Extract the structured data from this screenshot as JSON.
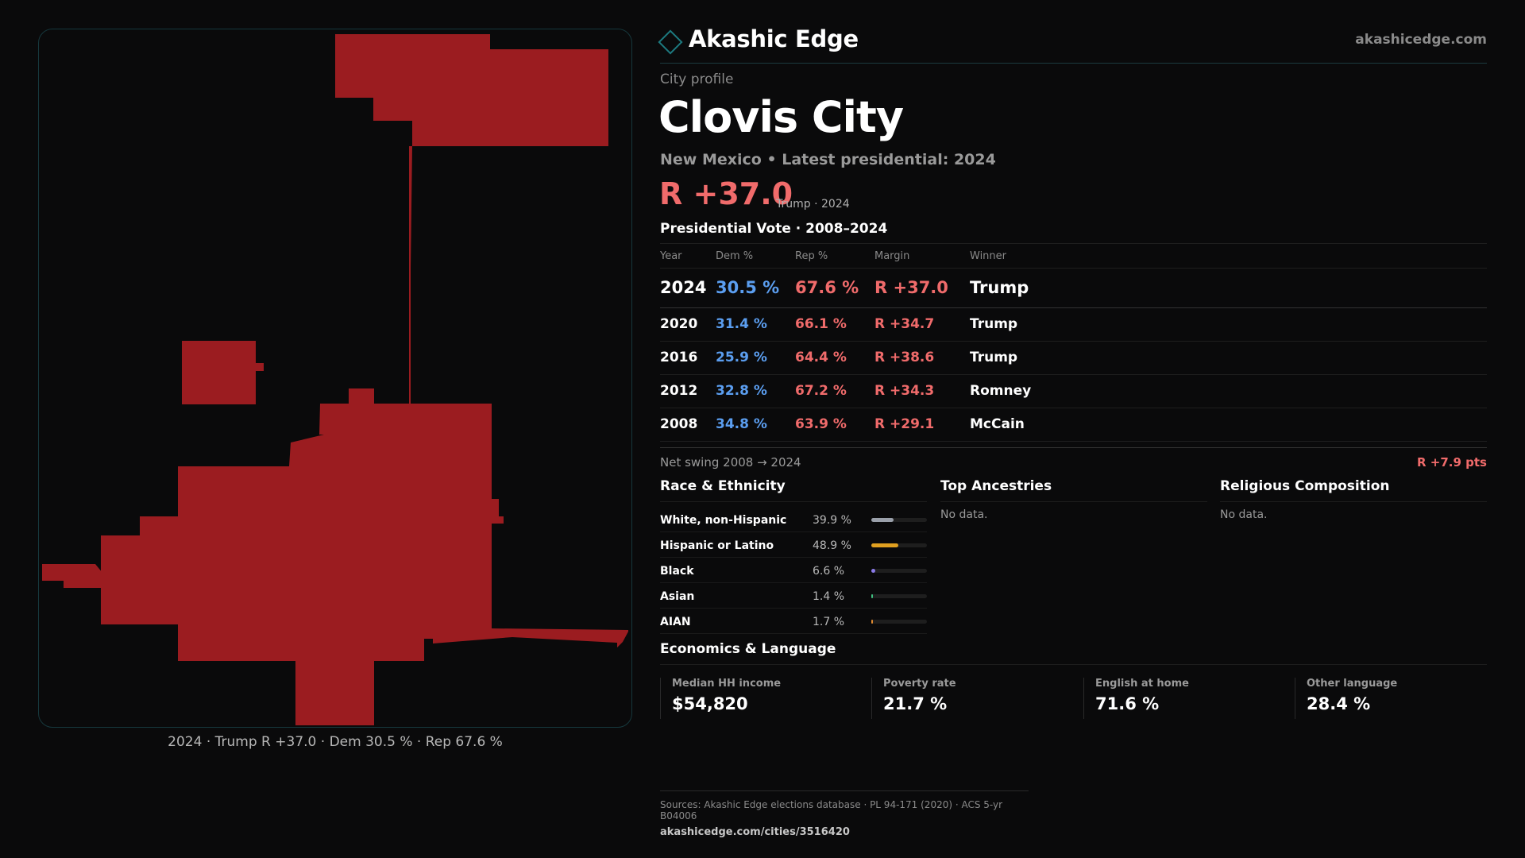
{
  "brand": {
    "name": "Akashic Edge",
    "url": "akashicedge.com"
  },
  "profile": {
    "eyebrow": "City profile",
    "city": "Clovis City",
    "subtitle": "New Mexico • Latest presidential: 2024",
    "margin": "R +37.0",
    "margin_note": "Trump · 2024"
  },
  "map": {
    "caption": "2024 · Trump R +37.0 · Dem 30.5 % · Rep 67.6 %",
    "fill_color": "#9b1c20"
  },
  "vote_table": {
    "title": "Presidential Vote · 2008–2024",
    "headers": {
      "year": "Year",
      "dem": "Dem %",
      "rep": "Rep %",
      "margin": "Margin",
      "winner": "Winner"
    },
    "rows": [
      {
        "year": "2024",
        "dem": "30.5 %",
        "rep": "67.6 %",
        "margin": "R +37.0",
        "winner": "Trump"
      },
      {
        "year": "2020",
        "dem": "31.4 %",
        "rep": "66.1 %",
        "margin": "R +34.7",
        "winner": "Trump"
      },
      {
        "year": "2016",
        "dem": "25.9 %",
        "rep": "64.4 %",
        "margin": "R +38.6",
        "winner": "Trump"
      },
      {
        "year": "2012",
        "dem": "32.8 %",
        "rep": "67.2 %",
        "margin": "R +34.3",
        "winner": "Romney"
      },
      {
        "year": "2008",
        "dem": "34.8 %",
        "rep": "63.9 %",
        "margin": "R +29.1",
        "winner": "McCain"
      }
    ]
  },
  "swing": {
    "label": "Net swing 2008 → 2024",
    "value": "R +7.9 pts"
  },
  "race": {
    "title": "Race & Ethnicity",
    "rows": [
      {
        "label": "White, non-Hispanic",
        "pct": "39.9 %",
        "fraction": 0.399,
        "color": "#9aa0aa"
      },
      {
        "label": "Hispanic or Latino",
        "pct": "48.9 %",
        "fraction": 0.489,
        "color": "#e0a020"
      },
      {
        "label": "Black",
        "pct": "6.6 %",
        "fraction": 0.066,
        "color": "#8a7ae8"
      },
      {
        "label": "Asian",
        "pct": "1.4 %",
        "fraction": 0.014,
        "color": "#3fbf7f"
      },
      {
        "label": "AIAN",
        "pct": "1.7 %",
        "fraction": 0.017,
        "color": "#e08a30"
      }
    ]
  },
  "ancestries": {
    "title": "Top Ancestries",
    "empty": "No data."
  },
  "religion": {
    "title": "Religious Composition",
    "empty": "No data."
  },
  "economics": {
    "title": "Economics & Language",
    "cells": [
      {
        "label": "Median HH income",
        "value": "$54,820"
      },
      {
        "label": "Poverty rate",
        "value": "21.7 %"
      },
      {
        "label": "English at home",
        "value": "71.6 %"
      },
      {
        "label": "Other language",
        "value": "28.4 %"
      }
    ]
  },
  "footer": {
    "sources": "Sources: Akashic Edge elections database · PL 94-171 (2020) · ACS 5-yr B04006",
    "url": "akashicedge.com/cities/3516420"
  }
}
